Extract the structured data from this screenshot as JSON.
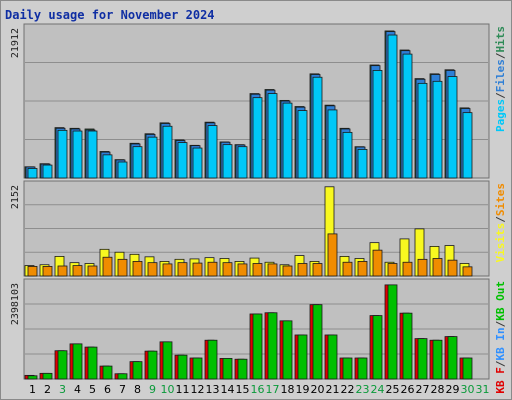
{
  "title": "Daily usage for November 2024",
  "colors": {
    "background": "#cfcfcf",
    "panel": "#c0c0c0",
    "pages": "#00c8f8",
    "files": "#2e7fd6",
    "hits": "#2e8b57",
    "visits": "#f8f820",
    "sites": "#f08c00",
    "kb_in": "#3090ff",
    "kb_out": "#00c000",
    "kb_f": "#e00000",
    "weekend_label": "#0a9a3a",
    "weekday_label": "#000000"
  },
  "chart_data": [
    {
      "type": "bar",
      "name": "hits-files-pages",
      "y_axis_max_label": "21912",
      "legend": [
        "Pages",
        "/",
        "Files",
        "/",
        "Hits"
      ],
      "categories": [
        "1",
        "2",
        "3",
        "4",
        "5",
        "6",
        "7",
        "8",
        "9",
        "10",
        "11",
        "12",
        "13",
        "14",
        "15",
        "16",
        "17",
        "18",
        "19",
        "20",
        "21",
        "22",
        "23",
        "24",
        "25",
        "26",
        "27",
        "28",
        "29",
        "30",
        "31"
      ],
      "series": [
        {
          "name": "Hits",
          "values": [
            1650,
            2100,
            7400,
            7300,
            7200,
            3900,
            2700,
            5100,
            6500,
            8100,
            5600,
            4800,
            8200,
            5300,
            4900,
            12400,
            13000,
            11400,
            10500,
            15300,
            10700,
            7300,
            4600,
            16600,
            21600,
            18800,
            14600,
            15300,
            15900,
            10300,
            0
          ]
        },
        {
          "name": "Files",
          "values": [
            1620,
            2050,
            7300,
            7200,
            7050,
            3800,
            2650,
            5000,
            6400,
            8000,
            5500,
            4750,
            8100,
            5250,
            4850,
            12300,
            12900,
            11300,
            10400,
            15200,
            10600,
            7200,
            4550,
            16500,
            21500,
            18700,
            14500,
            15200,
            15800,
            10200,
            0
          ]
        },
        {
          "name": "Pages",
          "values": [
            1400,
            1900,
            7000,
            6900,
            6900,
            3400,
            2350,
            4600,
            6000,
            7600,
            5200,
            4400,
            7700,
            4900,
            4600,
            11800,
            12400,
            11000,
            9900,
            14800,
            10000,
            6700,
            4200,
            15800,
            21000,
            18200,
            13900,
            14200,
            14900,
            9600,
            0
          ]
        }
      ]
    },
    {
      "type": "bar",
      "name": "visits-sites",
      "y_axis_max_label": "2152",
      "legend": [
        "Visits",
        "/",
        "Sites"
      ],
      "categories": [
        "1",
        "2",
        "3",
        "4",
        "5",
        "6",
        "7",
        "8",
        "9",
        "10",
        "11",
        "12",
        "13",
        "14",
        "15",
        "16",
        "17",
        "18",
        "19",
        "20",
        "21",
        "22",
        "23",
        "24",
        "25",
        "26",
        "27",
        "28",
        "29",
        "30",
        "31"
      ],
      "series": [
        {
          "name": "Visits",
          "values": [
            250,
            270,
            470,
            320,
            300,
            640,
            570,
            520,
            460,
            350,
            400,
            410,
            440,
            420,
            350,
            430,
            330,
            270,
            490,
            350,
            2140,
            470,
            420,
            800,
            330,
            890,
            1130,
            710,
            730,
            300,
            0
          ]
        },
        {
          "name": "Sites",
          "values": [
            230,
            230,
            240,
            250,
            240,
            450,
            400,
            350,
            320,
            290,
            320,
            310,
            330,
            320,
            290,
            300,
            290,
            240,
            300,
            300,
            1010,
            330,
            350,
            620,
            300,
            330,
            400,
            420,
            380,
            220,
            0
          ]
        }
      ]
    },
    {
      "type": "bar",
      "name": "kbytes",
      "y_axis_max_label": "2398103",
      "legend": [
        "KB F",
        "/",
        "KB In",
        "/",
        "KB Out"
      ],
      "categories": [
        "1",
        "2",
        "3",
        "4",
        "5",
        "6",
        "7",
        "8",
        "9",
        "10",
        "11",
        "12",
        "13",
        "14",
        "15",
        "16",
        "17",
        "18",
        "19",
        "20",
        "21",
        "22",
        "23",
        "24",
        "25",
        "26",
        "27",
        "28",
        "29",
        "30",
        "31"
      ],
      "series": [
        {
          "name": "KB F",
          "values": [
            90000,
            140000,
            700000,
            870000,
            790000,
            320000,
            130000,
            430000,
            690000,
            920000,
            590000,
            520000,
            960000,
            510000,
            490000,
            1610000,
            1640000,
            1440000,
            1090000,
            1840000,
            1090000,
            520000,
            520000,
            1570000,
            2330000,
            1630000,
            1000000,
            960000,
            1050000,
            520000,
            0
          ]
        },
        {
          "name": "KB Out",
          "values": [
            80000,
            140000,
            700000,
            870000,
            790000,
            320000,
            130000,
            430000,
            690000,
            920000,
            590000,
            520000,
            960000,
            510000,
            490000,
            1610000,
            1640000,
            1440000,
            1090000,
            1840000,
            1090000,
            520000,
            520000,
            1570000,
            2330000,
            1630000,
            1000000,
            960000,
            1050000,
            520000,
            0
          ]
        }
      ]
    }
  ],
  "x_labels": [
    {
      "label": "1",
      "weekend": false
    },
    {
      "label": "2",
      "weekend": false
    },
    {
      "label": "3",
      "weekend": true
    },
    {
      "label": "4",
      "weekend": false
    },
    {
      "label": "5",
      "weekend": false
    },
    {
      "label": "6",
      "weekend": false
    },
    {
      "label": "7",
      "weekend": false
    },
    {
      "label": "8",
      "weekend": false
    },
    {
      "label": "9",
      "weekend": true
    },
    {
      "label": "10",
      "weekend": true
    },
    {
      "label": "11",
      "weekend": false
    },
    {
      "label": "12",
      "weekend": false
    },
    {
      "label": "13",
      "weekend": false
    },
    {
      "label": "14",
      "weekend": false
    },
    {
      "label": "15",
      "weekend": false
    },
    {
      "label": "16",
      "weekend": true
    },
    {
      "label": "17",
      "weekend": true
    },
    {
      "label": "18",
      "weekend": false
    },
    {
      "label": "19",
      "weekend": false
    },
    {
      "label": "20",
      "weekend": false
    },
    {
      "label": "21",
      "weekend": false
    },
    {
      "label": "22",
      "weekend": false
    },
    {
      "label": "23",
      "weekend": true
    },
    {
      "label": "24",
      "weekend": true
    },
    {
      "label": "25",
      "weekend": false
    },
    {
      "label": "26",
      "weekend": false
    },
    {
      "label": "27",
      "weekend": false
    },
    {
      "label": "28",
      "weekend": false
    },
    {
      "label": "29",
      "weekend": false
    },
    {
      "label": "30",
      "weekend": true
    },
    {
      "label": "31",
      "weekend": true
    }
  ]
}
